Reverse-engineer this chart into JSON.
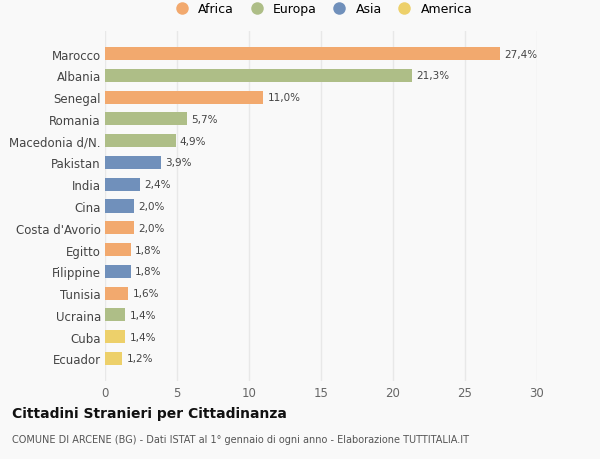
{
  "countries": [
    "Marocco",
    "Albania",
    "Senegal",
    "Romania",
    "Macedonia d/N.",
    "Pakistan",
    "India",
    "Cina",
    "Costa d'Avorio",
    "Egitto",
    "Filippine",
    "Tunisia",
    "Ucraina",
    "Cuba",
    "Ecuador"
  ],
  "values": [
    27.4,
    21.3,
    11.0,
    5.7,
    4.9,
    3.9,
    2.4,
    2.0,
    2.0,
    1.8,
    1.8,
    1.6,
    1.4,
    1.4,
    1.2
  ],
  "labels": [
    "27,4%",
    "21,3%",
    "11,0%",
    "5,7%",
    "4,9%",
    "3,9%",
    "2,4%",
    "2,0%",
    "2,0%",
    "1,8%",
    "1,8%",
    "1,6%",
    "1,4%",
    "1,4%",
    "1,2%"
  ],
  "continents": [
    "Africa",
    "Europa",
    "Africa",
    "Europa",
    "Europa",
    "Asia",
    "Asia",
    "Asia",
    "Africa",
    "Africa",
    "Asia",
    "Africa",
    "Europa",
    "America",
    "America"
  ],
  "colors": {
    "Africa": "#F2A96E",
    "Europa": "#AEBE87",
    "Asia": "#7090BB",
    "America": "#EDD06A"
  },
  "xlim": [
    0,
    30
  ],
  "xticks": [
    0,
    5,
    10,
    15,
    20,
    25,
    30
  ],
  "title": "Cittadini Stranieri per Cittadinanza",
  "subtitle": "COMUNE DI ARCENE (BG) - Dati ISTAT al 1° gennaio di ogni anno - Elaborazione TUTTITALIA.IT",
  "background_color": "#f9f9f9",
  "grid_color": "#e8e8e8"
}
